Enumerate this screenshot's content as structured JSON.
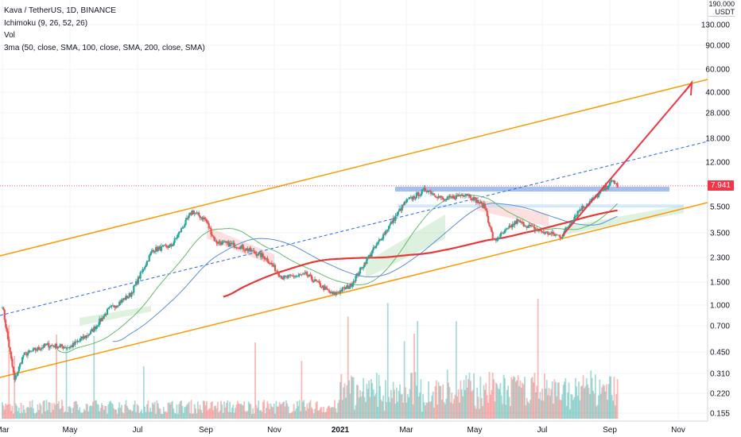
{
  "legend": {
    "symbol": "Kava / TetherUS, 1D, BINANCE",
    "ichimoku": "Ichimoku (9, 26, 52, 26)",
    "vol": "Vol",
    "ma": "3ma (50, close, SMA, 100, close, SMA, 200, close, SMA)"
  },
  "price_axis": {
    "top_label": "190.000",
    "currency": "USDT",
    "ticks": [
      "130.000",
      "90.000",
      "60.000",
      "40.000",
      "28.000",
      "18.000",
      "12.000",
      "5.500",
      "3.500",
      "2.300",
      "1.500",
      "1.000",
      "0.700",
      "0.450",
      "0.310",
      "0.220",
      "0.155"
    ]
  },
  "last_price": "7.941",
  "time_axis": [
    "Mar",
    "May",
    "Jul",
    "Sep",
    "Nov",
    "2021",
    "Mar",
    "May",
    "Jul",
    "Sep",
    "Nov"
  ],
  "colors": {
    "up": "#26a69a",
    "down": "#ef5350",
    "channel": "#ff9800",
    "arrow": "#f23645",
    "sma200": "#e53935",
    "sma100": "#5b8fd6",
    "sma50": "#66bb6a",
    "resistance": "#90b4ef",
    "last_price": "#f23645"
  },
  "chart_data": {
    "type": "candlestick",
    "title": "Kava / TetherUS, 1D, BINANCE",
    "y_scale": "log",
    "y_ticks": [
      130,
      90,
      60,
      40,
      28,
      18,
      12,
      5.5,
      3.5,
      2.3,
      1.5,
      1.0,
      0.7,
      0.45,
      0.31,
      0.22,
      0.155
    ],
    "x_ticks": [
      "Mar",
      "May",
      "Jul",
      "Sep",
      "Nov",
      "2021",
      "Mar",
      "May",
      "Jul",
      "Sep",
      "Nov"
    ],
    "last_price": 7.941,
    "price_path": [
      [
        "2020-03-01",
        1.0
      ],
      [
        "2020-03-12",
        0.27
      ],
      [
        "2020-03-20",
        0.42
      ],
      [
        "2020-04-10",
        0.5
      ],
      [
        "2020-05-01",
        0.48
      ],
      [
        "2020-05-20",
        0.62
      ],
      [
        "2020-06-05",
        0.92
      ],
      [
        "2020-06-25",
        1.2
      ],
      [
        "2020-07-15",
        2.6
      ],
      [
        "2020-08-01",
        2.8
      ],
      [
        "2020-08-20",
        5.1
      ],
      [
        "2020-09-01",
        4.4
      ],
      [
        "2020-09-10",
        3.0
      ],
      [
        "2020-10-01",
        2.8
      ],
      [
        "2020-10-25",
        2.3
      ],
      [
        "2020-11-10",
        1.6
      ],
      [
        "2020-12-01",
        1.7
      ],
      [
        "2020-12-25",
        1.2
      ],
      [
        "2021-01-10",
        1.4
      ],
      [
        "2021-01-25",
        2.2
      ],
      [
        "2021-02-10",
        3.5
      ],
      [
        "2021-03-01",
        6.0
      ],
      [
        "2021-03-20",
        7.5
      ],
      [
        "2021-04-05",
        6.2
      ],
      [
        "2021-04-25",
        7.0
      ],
      [
        "2021-05-12",
        5.5
      ],
      [
        "2021-05-20",
        3.0
      ],
      [
        "2021-06-10",
        4.3
      ],
      [
        "2021-07-01",
        3.6
      ],
      [
        "2021-07-20",
        3.3
      ],
      [
        "2021-08-05",
        5.2
      ],
      [
        "2021-08-20",
        6.5
      ],
      [
        "2021-09-05",
        8.7
      ],
      [
        "2021-09-09",
        7.94
      ]
    ],
    "resistance_level": 7.5,
    "support_zone": 5.6
  }
}
